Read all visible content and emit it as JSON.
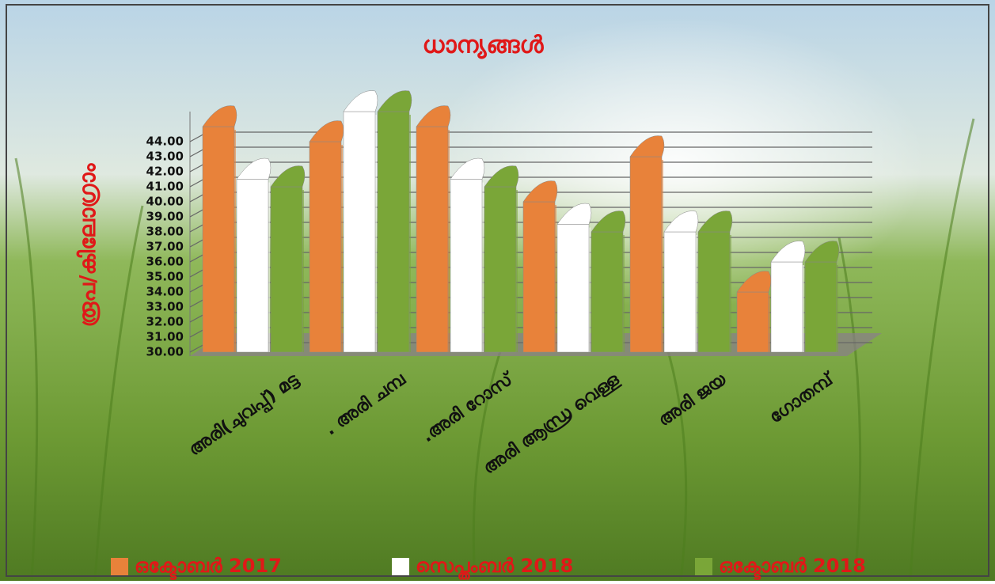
{
  "chart_data": {
    "type": "bar3d",
    "title": "ധാന്യങ്ങൾ",
    "y_label": "രൂപ/കിലോഗ്രാം",
    "categories": [
      "അരി(ചുവപ്പ്) മട്ട",
      ". അരി ചമ്പ",
      ".അരി റോസ്",
      "അരി ആന്ധ്ര വെള്ള",
      "അരി ജയ",
      "ഗോതമ്പ്"
    ],
    "series": [
      {
        "name": "ഒക്ടോബർ 2017",
        "color": "#e8823a",
        "values": [
          45,
          44,
          45,
          40,
          43,
          34
        ]
      },
      {
        "name": "സെപ്തംബർ 2018",
        "color": "#ffffff",
        "values": [
          41.5,
          46,
          41.5,
          38.5,
          38,
          36
        ]
      },
      {
        "name": "ഒക്ടോബർ 2018",
        "color": "#7aa638",
        "values": [
          41,
          46,
          41,
          38,
          38,
          36
        ]
      }
    ],
    "ylim": [
      30,
      46
    ],
    "yticks": [
      {
        "value": 30,
        "label": "30.00"
      },
      {
        "value": 31,
        "label": "31.00"
      },
      {
        "value": 32,
        "label": "32.00"
      },
      {
        "value": 33,
        "label": "33.00"
      },
      {
        "value": 34,
        "label": "34.00"
      },
      {
        "value": 35,
        "label": "35.00"
      },
      {
        "value": 36,
        "label": "36.00"
      },
      {
        "value": 37,
        "label": "37.00"
      },
      {
        "value": 38,
        "label": "38.00"
      },
      {
        "value": 39,
        "label": "39.00"
      },
      {
        "value": 40,
        "label": "40.00"
      },
      {
        "value": 41,
        "label": "41.00"
      },
      {
        "value": 42,
        "label": "42.00"
      },
      {
        "value": 43,
        "label": "43.00"
      },
      {
        "value": 44,
        "label": "44.00"
      }
    ],
    "grid": true
  }
}
